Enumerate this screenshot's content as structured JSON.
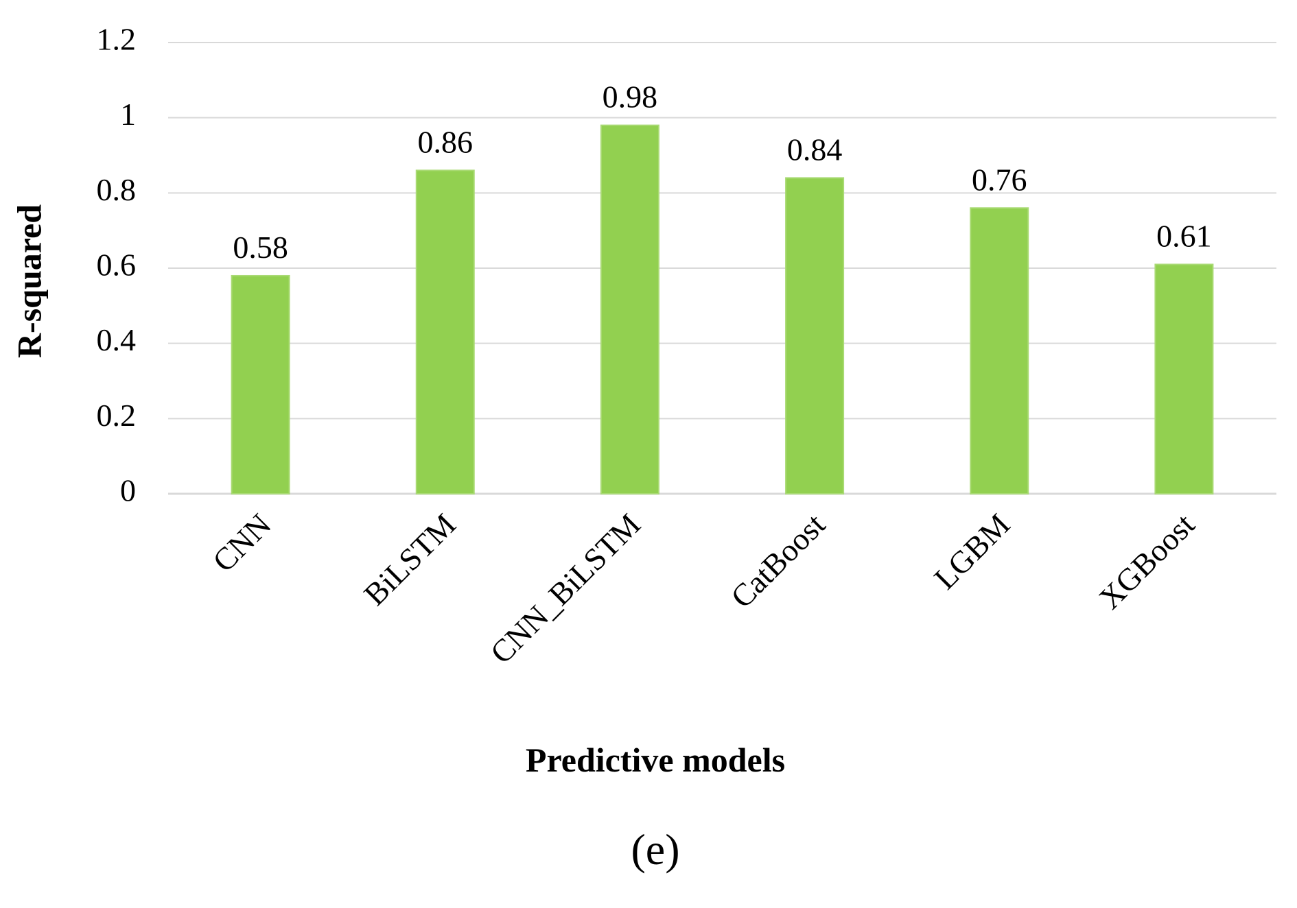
{
  "chart_data": {
    "type": "bar",
    "categories": [
      "CNN",
      "BiLSTM",
      "CNN_BiLSTM",
      "CatBoost",
      "LGBM",
      "XGBoost"
    ],
    "values": [
      0.58,
      0.86,
      0.98,
      0.84,
      0.76,
      0.61
    ],
    "data_labels": [
      "0.58",
      "0.86",
      "0.98",
      "0.84",
      "0.76",
      "0.61"
    ],
    "xlabel": "Predictive models",
    "ylabel": "R-squared",
    "ylim": [
      0,
      1.2
    ],
    "yticks": [
      0,
      0.2,
      0.4,
      0.6,
      0.8,
      1,
      1.2
    ],
    "ytick_labels": [
      "0",
      "0.2",
      "0.4",
      "0.6",
      "0.8",
      "1",
      "1.2"
    ],
    "grid": true,
    "bar_color": "#92D050",
    "grid_color": "#D9D9D9"
  },
  "panel_label": "(e)"
}
